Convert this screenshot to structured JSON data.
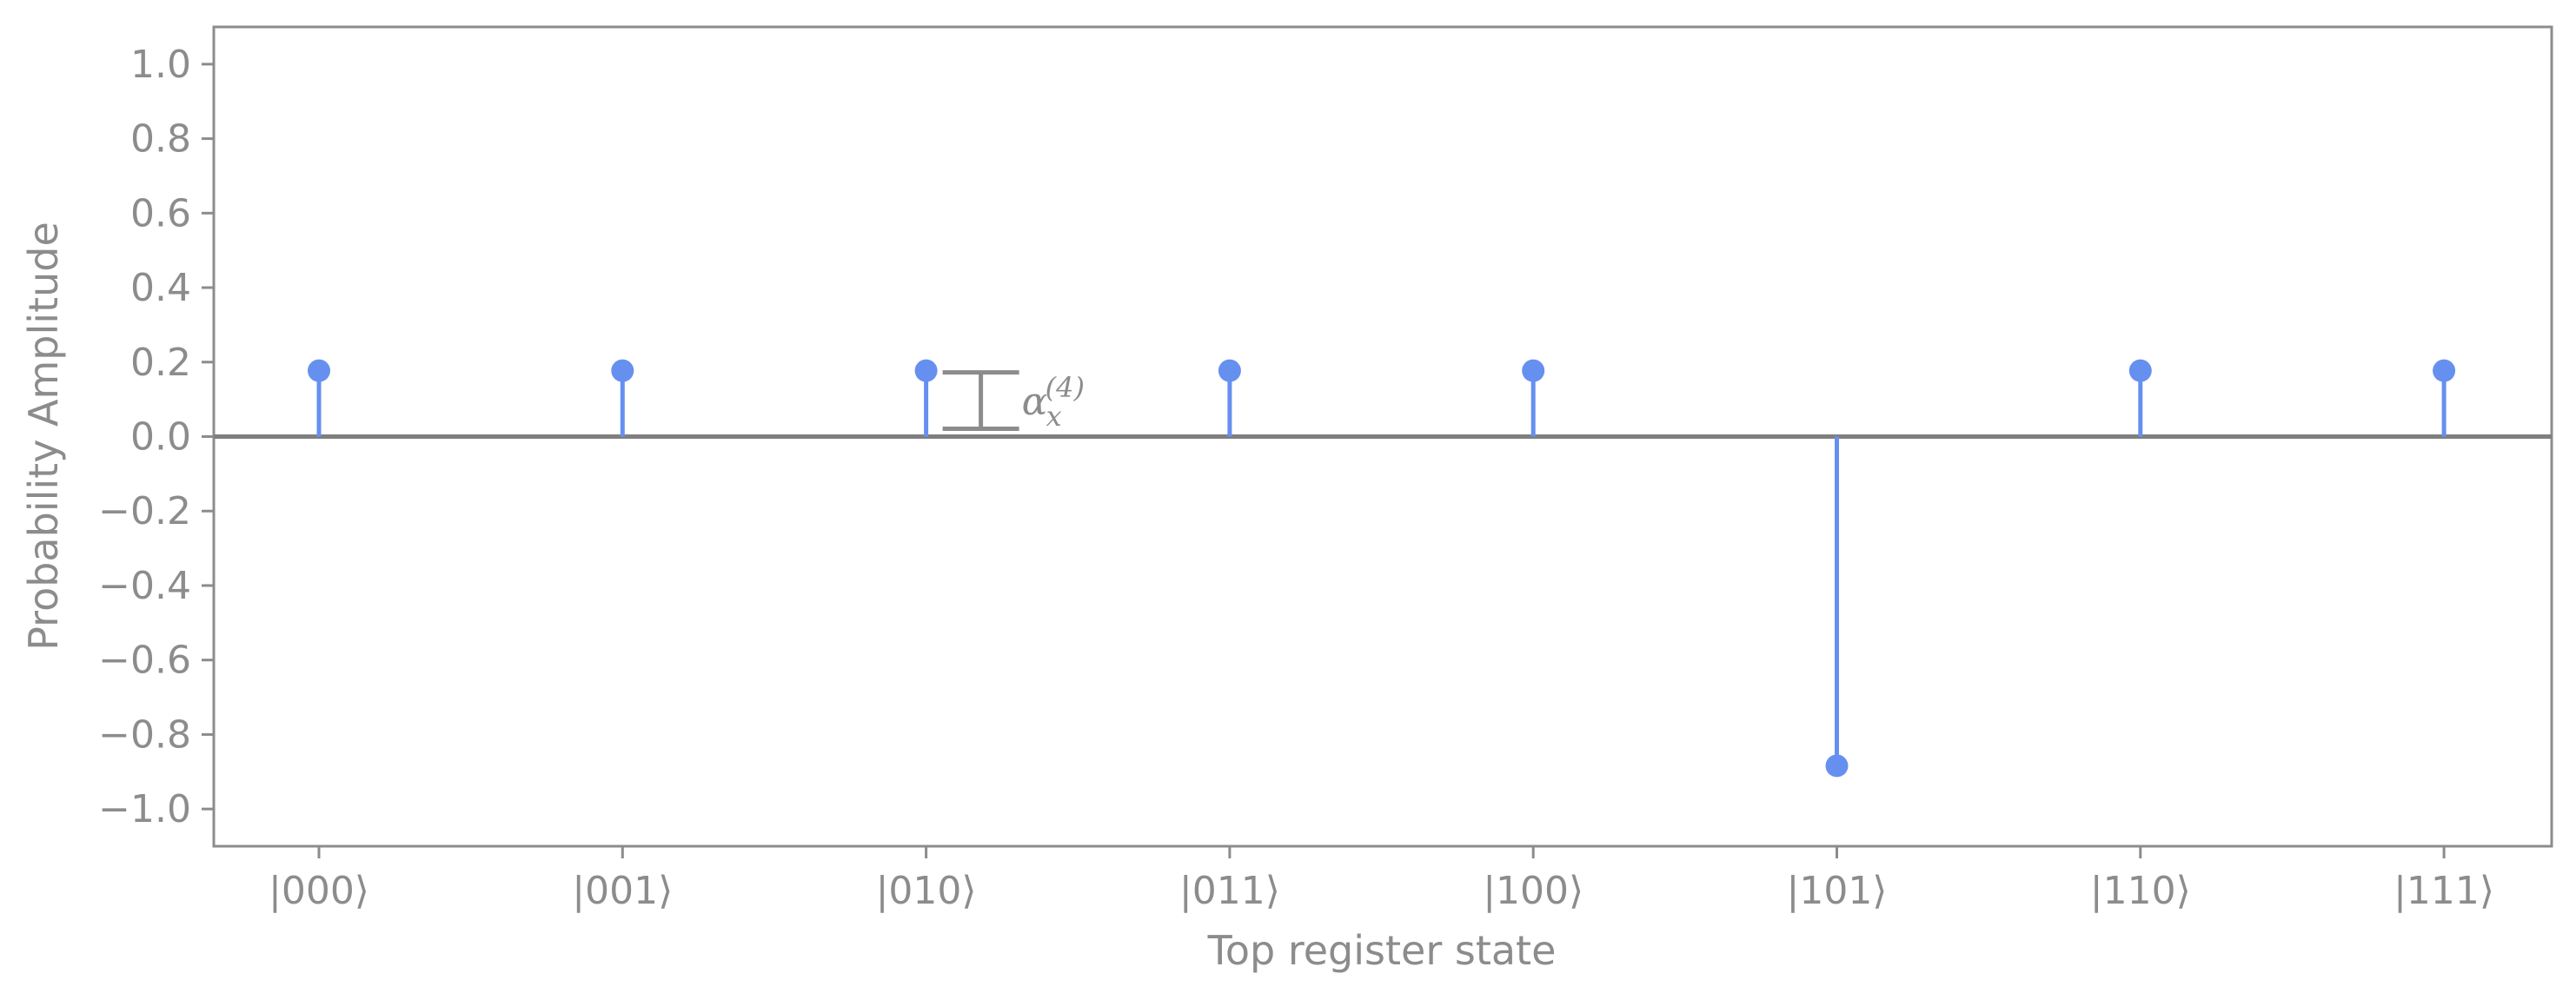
{
  "chart_data": {
    "type": "stem",
    "title": "",
    "xlabel": "Top register state",
    "ylabel": "Probability Amplitude",
    "categories": [
      "|000⟩",
      "|001⟩",
      "|010⟩",
      "|011⟩",
      "|100⟩",
      "|101⟩",
      "|110⟩",
      "|111⟩"
    ],
    "values": [
      0.177,
      0.177,
      0.177,
      0.177,
      0.177,
      -0.884,
      0.177,
      0.177
    ],
    "ylim": [
      -1.1,
      1.1
    ],
    "yticks": [
      1.0,
      0.8,
      0.6,
      0.4,
      0.2,
      0.0,
      -0.2,
      -0.4,
      -0.6,
      -0.8,
      -1.0
    ],
    "ytick_labels": [
      "1.0",
      "0.8",
      "0.6",
      "0.4",
      "0.2",
      "0.0",
      "−0.2",
      "−0.4",
      "−0.6",
      "−0.8",
      "−1.0"
    ],
    "grid": false,
    "annotation": {
      "base": "α",
      "sub": "x",
      "sup": "(4)",
      "between_categories": [
        "|010⟩",
        "|011⟩"
      ],
      "from": 0.0,
      "to": 0.177
    },
    "colors": {
      "stem": "#6690f0",
      "axis": "#8c8c8c",
      "baseline": "#7f7f7f",
      "text": "#8c8c8c"
    }
  }
}
